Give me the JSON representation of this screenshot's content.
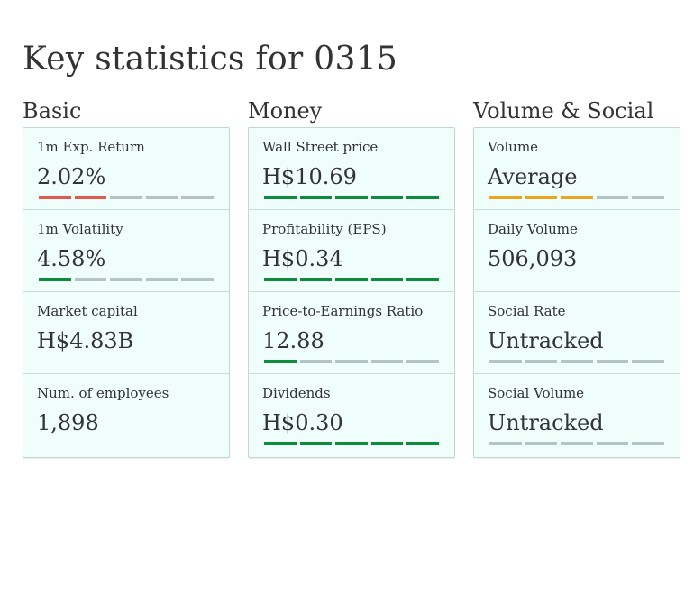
{
  "page": {
    "title": "Key statistics for 0315"
  },
  "colors": {
    "red": "#e05a52",
    "green": "#0d8d3b",
    "amber": "#eca31e",
    "empty": "#b3c4c4"
  },
  "columns": [
    {
      "heading": "Basic",
      "stats": [
        {
          "label": "1m Exp. Return",
          "value": "2.02%",
          "rating": {
            "filled": 2,
            "of": 5,
            "color": "red"
          }
        },
        {
          "label": "1m Volatility",
          "value": "4.58%",
          "rating": {
            "filled": 1,
            "of": 5,
            "color": "green"
          }
        },
        {
          "label": "Market capital",
          "value": "H$4.83B"
        },
        {
          "label": "Num. of employees",
          "value": "1,898"
        }
      ]
    },
    {
      "heading": "Money",
      "stats": [
        {
          "label": "Wall Street price",
          "value": "H$10.69",
          "rating": {
            "filled": 5,
            "of": 5,
            "color": "green"
          }
        },
        {
          "label": "Profitability (EPS)",
          "value": "H$0.34",
          "rating": {
            "filled": 5,
            "of": 5,
            "color": "green"
          }
        },
        {
          "label": "Price-to-Earnings Ratio",
          "value": "12.88",
          "rating": {
            "filled": 1,
            "of": 5,
            "color": "green"
          }
        },
        {
          "label": "Dividends",
          "value": "H$0.30",
          "rating": {
            "filled": 5,
            "of": 5,
            "color": "green"
          }
        }
      ]
    },
    {
      "heading": "Volume & Social",
      "stats": [
        {
          "label": "Volume",
          "value": "Average",
          "rating": {
            "filled": 3,
            "of": 5,
            "color": "amber"
          }
        },
        {
          "label": "Daily Volume",
          "value": "506,093"
        },
        {
          "label": "Social Rate",
          "value": "Untracked",
          "rating": {
            "filled": 0,
            "of": 5,
            "color": "green"
          }
        },
        {
          "label": "Social Volume",
          "value": "Untracked",
          "rating": {
            "filled": 0,
            "of": 5,
            "color": "green"
          }
        }
      ]
    }
  ]
}
